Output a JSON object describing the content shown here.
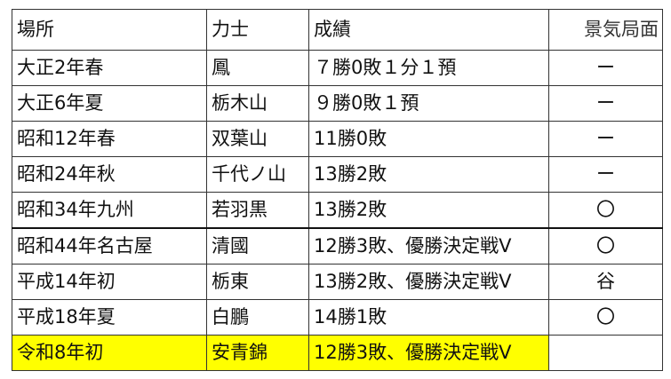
{
  "headers": [
    "場所",
    "力士",
    "成績",
    "景気局面"
  ],
  "rows": [
    [
      "大正2年春",
      "鳳",
      "７勝0敗１分１預",
      "ー"
    ],
    [
      "大正6年夏",
      "栃木山",
      "９勝0敗１預",
      "ー"
    ],
    [
      "昭和12年春",
      "双葉山",
      "11勝0敗",
      "ー"
    ],
    [
      "昭和24年秋",
      "千代ノ山",
      "13勝2敗",
      "ー"
    ],
    [
      "昭和34年九州",
      "若羽黒",
      "13勝2敗",
      "〇"
    ],
    [
      "昭和44年名古屋",
      "清國",
      "12勝3敗、優勝決定戦V",
      "〇"
    ],
    [
      "平成14年初",
      "栃東",
      "13勝2敗、優勝決定戦V",
      "谷"
    ],
    [
      "平成18年夏",
      "白鵬",
      "14勝1敗",
      "〇"
    ],
    [
      "令和8年初",
      "安青錦",
      "12勝3敗、優勝決定戦V",
      ""
    ]
  ],
  "highlight_color": "#ffff00",
  "highlighted_row": "令和8年初"
}
